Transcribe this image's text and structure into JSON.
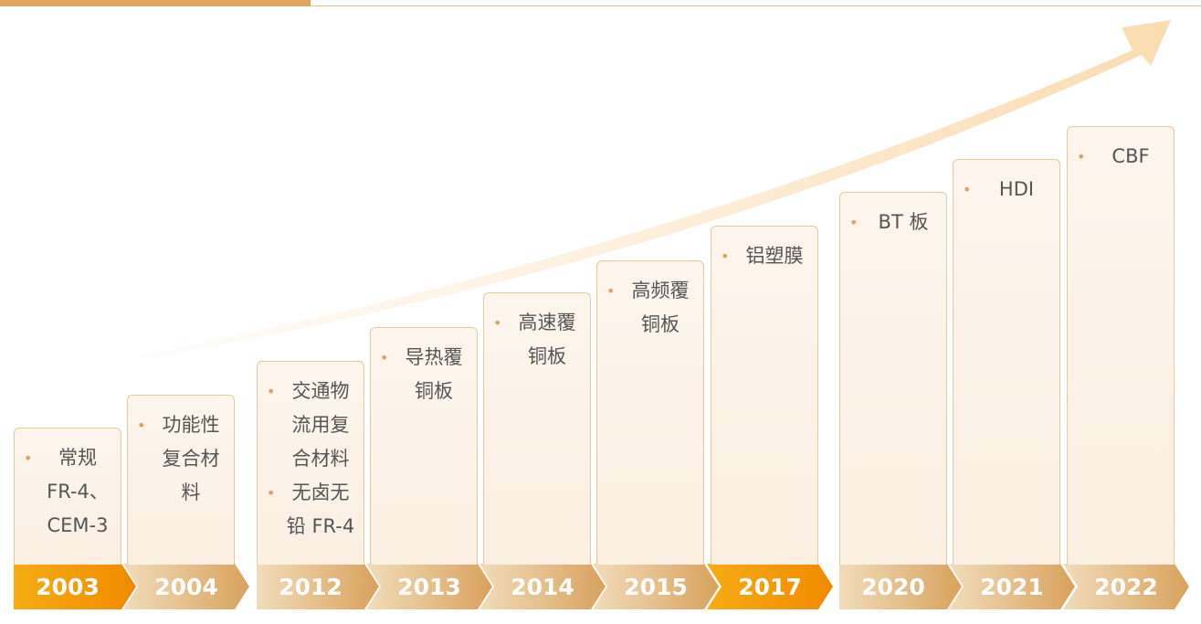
{
  "timeline": [
    {
      "year": "2003",
      "highlight": true,
      "items": [
        "常规 FR-4、CEM-3"
      ]
    },
    {
      "year": "2004",
      "highlight": false,
      "items": [
        "功能性复合材料"
      ]
    },
    {
      "year": "2012",
      "highlight": false,
      "items": [
        "交通物流用复合材料",
        "无卤无铅 FR-4"
      ]
    },
    {
      "year": "2013",
      "highlight": false,
      "items": [
        "导热覆铜板"
      ]
    },
    {
      "year": "2014",
      "highlight": false,
      "items": [
        "高速覆铜板"
      ]
    },
    {
      "year": "2015",
      "highlight": false,
      "items": [
        "高频覆铜板"
      ]
    },
    {
      "year": "2017",
      "highlight": true,
      "items": [
        "铝塑膜"
      ]
    },
    {
      "year": "2020",
      "highlight": false,
      "items": [
        "BT 板"
      ]
    },
    {
      "year": "2021",
      "highlight": false,
      "items": [
        "HDI"
      ]
    },
    {
      "year": "2022",
      "highlight": false,
      "items": [
        "CBF"
      ]
    }
  ]
}
